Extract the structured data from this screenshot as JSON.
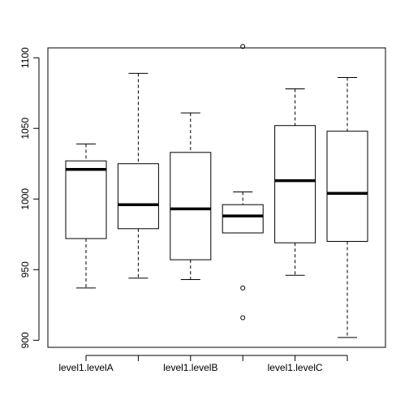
{
  "chart_data": {
    "type": "boxplot",
    "title": "",
    "xlabel": "",
    "ylabel": "",
    "ylim": [
      895,
      1107
    ],
    "y_ticks": [
      900,
      950,
      1000,
      1050,
      1100
    ],
    "y_tick_labels": [
      "900",
      "950",
      "1000",
      "1050",
      "1100"
    ],
    "x_tick_labels": [
      "level1.levelA",
      "",
      "level1.levelB",
      "",
      "level1.levelC",
      ""
    ],
    "grid": false,
    "legend": "none",
    "boxes": [
      {
        "label": "level1.levelA",
        "whisker_low": 937,
        "q1": 972,
        "median": 1021,
        "q3": 1027,
        "whisker_high": 1039,
        "outliers": []
      },
      {
        "label": "",
        "whisker_low": 944,
        "q1": 979,
        "median": 996,
        "q3": 1025,
        "whisker_high": 1089,
        "outliers": []
      },
      {
        "label": "level1.levelB",
        "whisker_low": 943,
        "q1": 957,
        "median": 993,
        "q3": 1033,
        "whisker_high": 1061,
        "outliers": []
      },
      {
        "label": "",
        "whisker_low": 976,
        "q1": 976,
        "median": 988,
        "q3": 996,
        "whisker_high": 1005,
        "outliers": [
          1108,
          937,
          916
        ]
      },
      {
        "label": "level1.levelC",
        "whisker_low": 946,
        "q1": 969,
        "median": 1013,
        "q3": 1052,
        "whisker_high": 1078,
        "outliers": []
      },
      {
        "label": "",
        "whisker_low": 902,
        "q1": 970,
        "median": 1004,
        "q3": 1048,
        "whisker_high": 1086,
        "outliers": []
      }
    ]
  }
}
